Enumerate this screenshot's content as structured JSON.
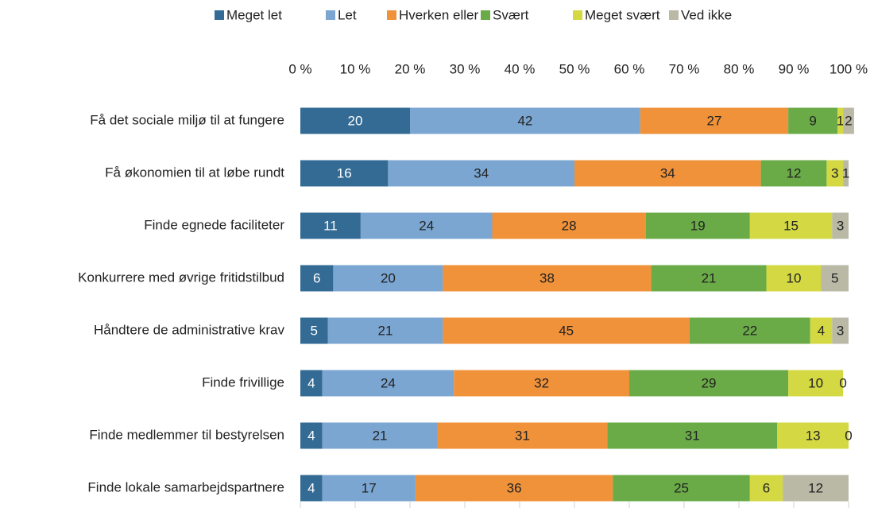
{
  "chart_data": {
    "type": "stacked-bar-horizontal",
    "categories": [
      "Få det sociale miljø til at fungere",
      "Få økonomien til at løbe rundt",
      "Finde egnede faciliteter",
      "Konkurrere med øvrige fritidstilbud",
      "Håndtere de administrative krav",
      "Finde frivillige",
      "Finde medlemmer til bestyrelsen",
      "Finde lokale samarbejdspartnere"
    ],
    "series": [
      {
        "name": "Meget let",
        "color": "#336b95",
        "values": [
          20,
          16,
          11,
          6,
          5,
          4,
          4,
          4
        ]
      },
      {
        "name": "Let",
        "color": "#7ba6d2",
        "values": [
          42,
          34,
          24,
          20,
          21,
          24,
          21,
          17
        ]
      },
      {
        "name": "Hverken eller",
        "color": "#f0923a",
        "values": [
          27,
          34,
          28,
          38,
          45,
          32,
          31,
          36
        ]
      },
      {
        "name": "Svært",
        "color": "#6aab48",
        "values": [
          9,
          12,
          19,
          21,
          22,
          29,
          31,
          25
        ]
      },
      {
        "name": "Meget svært",
        "color": "#d3d843",
        "values": [
          1,
          3,
          15,
          10,
          4,
          10,
          13,
          6
        ]
      },
      {
        "name": "Ved ikke",
        "color": "#b9b9a6",
        "values": [
          2,
          1,
          3,
          5,
          3,
          0,
          0,
          12
        ]
      }
    ],
    "xlim": [
      0,
      100
    ],
    "xticks": [
      {
        "value": 0,
        "label": "0 %"
      },
      {
        "value": 10,
        "label": "10 %"
      },
      {
        "value": 20,
        "label": "20 %"
      },
      {
        "value": 30,
        "label": "30 %"
      },
      {
        "value": 40,
        "label": "40 %"
      },
      {
        "value": 50,
        "label": "50 %"
      },
      {
        "value": 60,
        "label": "60 %"
      },
      {
        "value": 70,
        "label": "70 %"
      },
      {
        "value": 80,
        "label": "80 %"
      },
      {
        "value": 90,
        "label": "90 %"
      },
      {
        "value": 100,
        "label": "100 %"
      }
    ],
    "legend": "top"
  }
}
